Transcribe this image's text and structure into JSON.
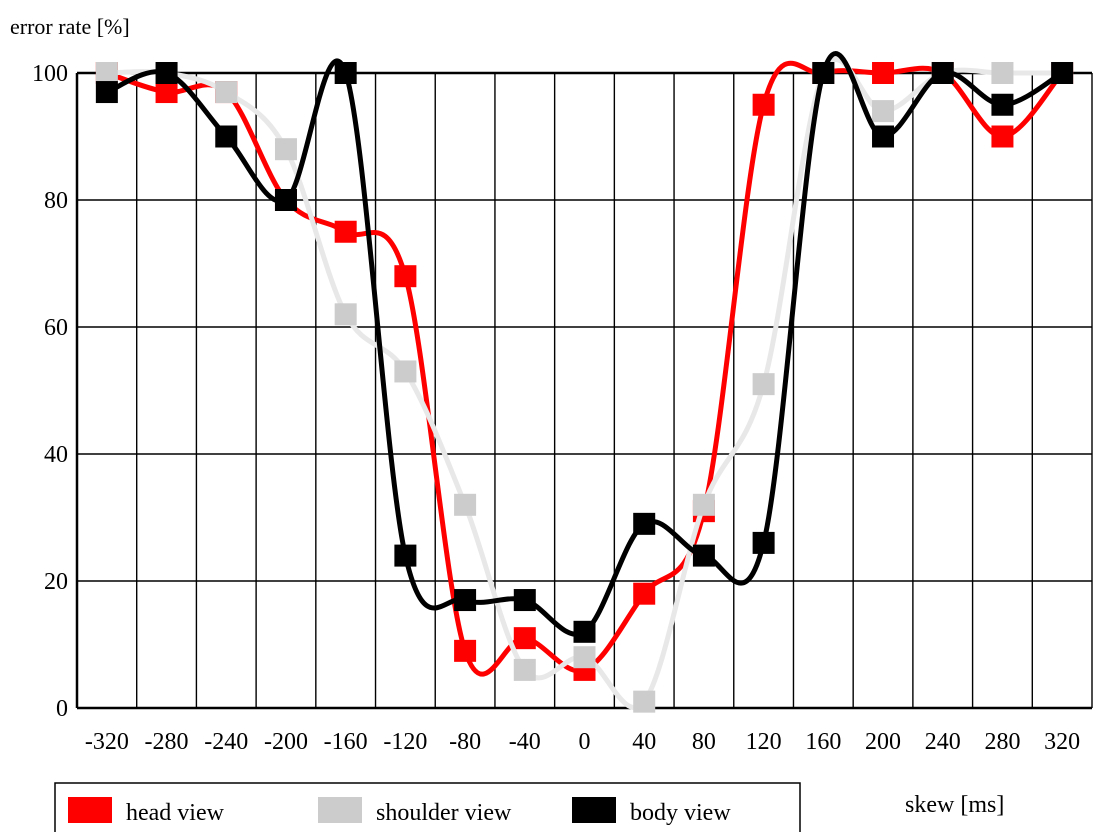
{
  "chart_data": {
    "type": "line",
    "title": "",
    "ylabel": "error rate [%]",
    "xlabel": "skew [ms]",
    "xlim": [
      -340,
      340
    ],
    "ylim": [
      0,
      100
    ],
    "grid": true,
    "legend_position": "bottom",
    "x_ticks": [
      -320,
      -280,
      -240,
      -200,
      -160,
      -120,
      -80,
      -40,
      0,
      40,
      80,
      120,
      160,
      200,
      240,
      280,
      320
    ],
    "x_tick_labels": [
      "-320",
      "-280",
      "-240",
      "-200",
      "-160",
      "-120",
      "-80",
      "-40",
      "0",
      "40",
      "80",
      "120",
      "160",
      "200",
      "240",
      "280",
      "320"
    ],
    "y_ticks": [
      0,
      20,
      40,
      60,
      80,
      100
    ],
    "y_tick_labels": [
      "0",
      "20",
      "40",
      "60",
      "80",
      "100"
    ],
    "series": [
      {
        "name": "head view",
        "color": "#ff0000",
        "x": [
          -320,
          -280,
          -240,
          -200,
          -160,
          -120,
          -80,
          -40,
          0,
          40,
          80,
          120,
          160,
          200,
          240,
          280,
          320
        ],
        "y": [
          100,
          97,
          97,
          80,
          75,
          68,
          9,
          11,
          6,
          18,
          31,
          95,
          100,
          100,
          100,
          90,
          100
        ]
      },
      {
        "name": "shoulder view",
        "color": "#cccccc",
        "x": [
          -320,
          -280,
          -240,
          -200,
          -160,
          -120,
          -80,
          -40,
          0,
          40,
          80,
          120,
          160,
          200,
          240,
          280,
          320
        ],
        "y": [
          100,
          100,
          97,
          88,
          62,
          53,
          32,
          6,
          8,
          1,
          32,
          51,
          100,
          94,
          100,
          100,
          100
        ]
      },
      {
        "name": "body view",
        "color": "#000000",
        "x": [
          -320,
          -280,
          -240,
          -200,
          -160,
          -120,
          -80,
          -40,
          0,
          40,
          80,
          120,
          160,
          200,
          240,
          280,
          320
        ],
        "y": [
          97,
          100,
          90,
          80,
          100,
          24,
          17,
          17,
          12,
          29,
          24,
          26,
          100,
          90,
          100,
          95,
          100
        ]
      }
    ],
    "legend": [
      {
        "label": "head view",
        "color": "#ff0000"
      },
      {
        "label": "shoulder view",
        "color": "#cccccc"
      },
      {
        "label": "body view",
        "color": "#000000"
      }
    ]
  }
}
